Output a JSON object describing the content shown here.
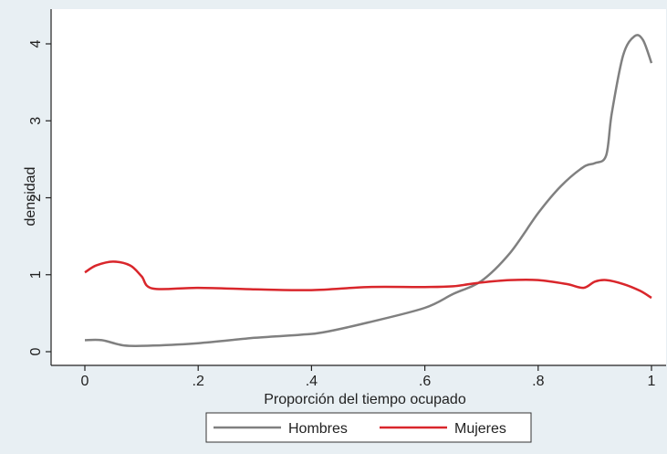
{
  "chart_data": {
    "type": "line",
    "xlabel": "Proporción del tiempo ocupado",
    "ylabel": "densidad",
    "xlim": [
      0,
      1
    ],
    "ylim": [
      0,
      4.2
    ],
    "x_ticks": [
      0,
      0.2,
      0.4,
      0.6,
      0.8,
      1
    ],
    "x_tick_labels": [
      "0",
      ".2",
      ".4",
      ".6",
      ".8",
      "1"
    ],
    "y_ticks": [
      0,
      1,
      2,
      3,
      4
    ],
    "y_tick_labels": [
      "0",
      "1",
      "2",
      "3",
      "4"
    ],
    "grid": false,
    "legend_position": "bottom",
    "series": [
      {
        "name": "Hombres",
        "color": "#808080",
        "x": [
          0,
          0.03,
          0.07,
          0.12,
          0.2,
          0.3,
          0.38,
          0.42,
          0.5,
          0.6,
          0.65,
          0.7,
          0.75,
          0.8,
          0.84,
          0.88,
          0.9,
          0.92,
          0.93,
          0.95,
          0.97,
          0.985,
          1
        ],
        "y": [
          0.15,
          0.15,
          0.08,
          0.08,
          0.11,
          0.18,
          0.22,
          0.25,
          0.38,
          0.57,
          0.75,
          0.92,
          1.28,
          1.8,
          2.15,
          2.4,
          2.45,
          2.55,
          3.1,
          3.85,
          4.1,
          4.05,
          3.75
        ]
      },
      {
        "name": "Mujeres",
        "color": "#d9262b",
        "x": [
          0,
          0.02,
          0.05,
          0.08,
          0.1,
          0.12,
          0.2,
          0.3,
          0.4,
          0.5,
          0.6,
          0.65,
          0.7,
          0.75,
          0.8,
          0.85,
          0.88,
          0.9,
          0.92,
          0.95,
          0.98,
          1
        ],
        "y": [
          1.03,
          1.12,
          1.17,
          1.12,
          0.98,
          0.82,
          0.83,
          0.81,
          0.8,
          0.84,
          0.84,
          0.85,
          0.9,
          0.93,
          0.93,
          0.88,
          0.83,
          0.91,
          0.93,
          0.88,
          0.79,
          0.7
        ]
      }
    ]
  }
}
